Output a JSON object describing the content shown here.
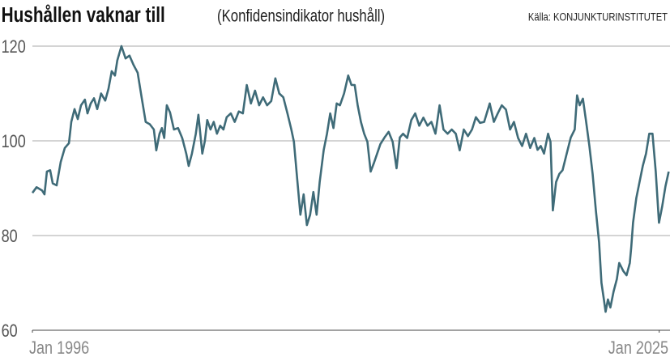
{
  "chart_data": {
    "type": "line",
    "title": "Hushållen vaknar till",
    "subtitle": "(Konfidensindikator hushåll)",
    "source": "Källa: KONJUNKTURINSTITUTET",
    "xlim": [
      1996,
      2025.5
    ],
    "xticks": [
      {
        "value": 1996,
        "label": "Jan 1996"
      },
      {
        "value": 2025,
        "label": "Jan 2025"
      }
    ],
    "ylim": [
      60,
      120
    ],
    "yticks": [
      60,
      80,
      100,
      120
    ],
    "grid": true,
    "x": [
      1996.0,
      1996.19,
      1996.45,
      1996.56,
      1996.67,
      1996.82,
      1996.94,
      1997.12,
      1997.31,
      1997.5,
      1997.69,
      1997.8,
      1997.95,
      1998.1,
      1998.25,
      1998.43,
      1998.55,
      1998.7,
      1998.85,
      1999.0,
      1999.18,
      1999.37,
      1999.52,
      1999.67,
      1999.82,
      1999.93,
      2000.12,
      2000.31,
      2000.49,
      2000.68,
      2000.87,
      2001.06,
      2001.24,
      2001.43,
      2001.62,
      2001.73,
      2001.88,
      2001.99,
      2002.1,
      2002.22,
      2002.37,
      2002.55,
      2002.74,
      2002.93,
      2003.12,
      2003.23,
      2003.38,
      2003.56,
      2003.68,
      2003.86,
      2003.98,
      2004.09,
      2004.24,
      2004.39,
      2004.54,
      2004.69,
      2004.84,
      2004.99,
      2005.18,
      2005.36,
      2005.55,
      2005.74,
      2005.92,
      2006.11,
      2006.3,
      2006.49,
      2006.67,
      2006.86,
      2007.05,
      2007.24,
      2007.42,
      2007.61,
      2007.8,
      2007.98,
      2008.1,
      2008.25,
      2008.4,
      2008.55,
      2008.7,
      2008.85,
      2009.0,
      2009.15,
      2009.29,
      2009.48,
      2009.63,
      2009.78,
      2009.93,
      2010.08,
      2010.23,
      2010.42,
      2010.61,
      2010.76,
      2010.91,
      2011.05,
      2011.2,
      2011.35,
      2011.5,
      2011.65,
      2011.8,
      2011.95,
      2012.1,
      2012.29,
      2012.48,
      2012.67,
      2012.85,
      2013.0,
      2013.15,
      2013.34,
      2013.53,
      2013.71,
      2013.9,
      2014.09,
      2014.28,
      2014.46,
      2014.65,
      2014.84,
      2015.02,
      2015.21,
      2015.4,
      2015.59,
      2015.77,
      2015.96,
      2016.15,
      2016.34,
      2016.52,
      2016.71,
      2016.9,
      2017.16,
      2017.35,
      2017.53,
      2017.72,
      2017.91,
      2018.1,
      2018.28,
      2018.47,
      2018.66,
      2018.84,
      2019.03,
      2019.22,
      2019.37,
      2019.52,
      2019.67,
      2019.86,
      2019.97,
      2020.08,
      2020.23,
      2020.38,
      2020.53,
      2020.72,
      2020.91,
      2021.09,
      2021.2,
      2021.32,
      2021.47,
      2021.62,
      2021.77,
      2021.92,
      2022.07,
      2022.22,
      2022.33,
      2022.44,
      2022.52,
      2022.63,
      2022.74,
      2022.89,
      2023.04,
      2023.15,
      2023.34,
      2023.49,
      2023.64,
      2023.71,
      2023.79,
      2023.94,
      2024.09,
      2024.24,
      2024.39,
      2024.54,
      2024.69,
      2024.84,
      2024.99,
      2025.14,
      2025.29,
      2025.44
    ],
    "series": [
      {
        "name": "Konfidensindikator hushåll",
        "color": "#3f6b78",
        "values": [
          89,
          90.2,
          89.5,
          88.7,
          93.5,
          93.8,
          91,
          90.6,
          95.5,
          98.5,
          99.5,
          104,
          106.7,
          104.6,
          107.5,
          108.7,
          105.8,
          107.9,
          109,
          106.7,
          110,
          108.5,
          111,
          114.7,
          113.8,
          117,
          120,
          117.4,
          118,
          116,
          114.4,
          109,
          104,
          103.5,
          102.4,
          98,
          101.5,
          102.7,
          100.6,
          107.5,
          106,
          102.4,
          102.7,
          100.6,
          97.3,
          94.7,
          97.3,
          101.5,
          105.5,
          97.3,
          100,
          104.4,
          102.4,
          104,
          101.5,
          103.2,
          102.4,
          105,
          105.8,
          104,
          106.2,
          105.8,
          111.8,
          107.9,
          110.6,
          107.5,
          109.2,
          107.5,
          108.4,
          113.2,
          110,
          109.2,
          105.8,
          102.4,
          99.8,
          92,
          84.4,
          88.7,
          82.2,
          84.4,
          89.2,
          84.4,
          91.3,
          98.1,
          101.5,
          105.8,
          102.7,
          107.9,
          107.5,
          110,
          113.8,
          111.8,
          111.8,
          107.5,
          104,
          101.5,
          99.8,
          93.5,
          95.3,
          97.3,
          99.3,
          100.7,
          101.9,
          99.8,
          94.2,
          100.7,
          101.5,
          100.6,
          104.4,
          105.8,
          103.2,
          104.9,
          103.2,
          104,
          101.5,
          107.5,
          102.4,
          101.5,
          102.4,
          101.5,
          98,
          102.4,
          101,
          102.4,
          105,
          103.8,
          104,
          107.9,
          104,
          105.8,
          107.5,
          106.6,
          102.4,
          104,
          100.6,
          98.9,
          101.5,
          98.5,
          100.6,
          98.1,
          98.9,
          97.3,
          101.5,
          99.8,
          85.3,
          91.3,
          93,
          93.8,
          97.3,
          100.7,
          102.4,
          109.6,
          107.5,
          108.9,
          104,
          98.9,
          93,
          85.3,
          78.5,
          70,
          66.5,
          63.9,
          66.5,
          64.8,
          68.2,
          70.8,
          74.2,
          72.5,
          71.6,
          74.2,
          77.6,
          82.7,
          87.9,
          91.3,
          94.7,
          97.3,
          101.5,
          101.5,
          93.5,
          82.7,
          86.2,
          90.4,
          93.5
        ]
      }
    ]
  }
}
